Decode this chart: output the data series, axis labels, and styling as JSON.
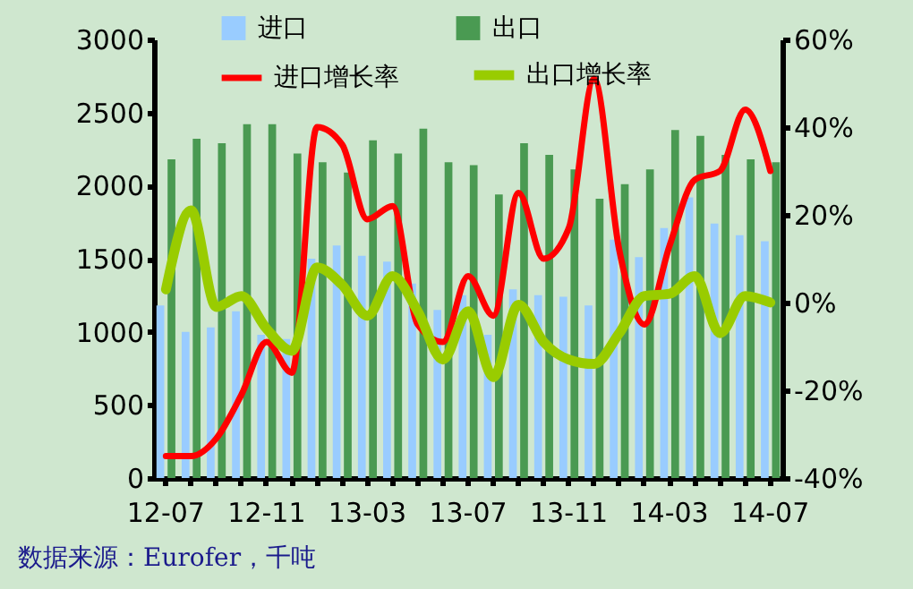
{
  "chart_data": {
    "type": "bar",
    "categories": [
      "12-07",
      null,
      null,
      null,
      "12-11",
      null,
      null,
      null,
      "13-03",
      null,
      null,
      null,
      "13-07",
      null,
      null,
      null,
      "13-11",
      null,
      null,
      null,
      "14-03",
      null,
      null,
      null,
      "14-07"
    ],
    "series": [
      {
        "name": "进口",
        "color": "#99ccff",
        "values": [
          1180,
          1000,
          1030,
          1140,
          980,
          950,
          1500,
          1590,
          1520,
          1480,
          1330,
          1150,
          1250,
          980,
          1290,
          1250,
          1240,
          1180,
          1630,
          1510,
          1710,
          1920,
          1740,
          1660,
          1620
        ]
      },
      {
        "name": "出口",
        "color": "#4a9a52",
        "values": [
          2180,
          2320,
          2290,
          2420,
          2420,
          2220,
          2160,
          2090,
          2310,
          2220,
          2390,
          2160,
          2140,
          1940,
          2290,
          2210,
          2110,
          1910,
          2010,
          2110,
          2380,
          2340,
          2210,
          2180,
          2160
        ]
      },
      {
        "name": "进口增长率",
        "type": "line",
        "axis": "y2",
        "color": "#ff0000",
        "values": [
          -35,
          -35,
          -31,
          -21,
          -9,
          -16,
          40,
          36,
          19,
          22,
          -5,
          -9,
          6,
          -3,
          25,
          10,
          17,
          51,
          12,
          -5,
          13,
          28,
          30,
          44,
          30
        ]
      },
      {
        "name": "出口增长率",
        "type": "line",
        "axis": "y2",
        "color": "#99cc00",
        "values": [
          3,
          21,
          -1,
          1.5,
          -6,
          -11,
          8,
          4,
          -3,
          6,
          -2,
          -13,
          -2,
          -17,
          -0.5,
          -9,
          -13,
          -14,
          -7,
          1.5,
          2,
          6,
          -7,
          1.5,
          0
        ]
      }
    ],
    "ylim": [
      0,
      3000
    ],
    "yticks": [
      0,
      500,
      1000,
      1500,
      2000,
      2500,
      3000
    ],
    "y2lim": [
      -40,
      60
    ],
    "y2ticks": [
      {
        "value": -40,
        "label": "-40%"
      },
      {
        "value": -20,
        "label": "-20%"
      },
      {
        "value": 0,
        "label": "0%"
      },
      {
        "value": 20,
        "label": "20%"
      },
      {
        "value": 40,
        "label": "40%"
      },
      {
        "value": 60,
        "label": "60%"
      }
    ],
    "legend": "top",
    "annotations": [
      "数据来源：Eurofer，千吨"
    ]
  }
}
